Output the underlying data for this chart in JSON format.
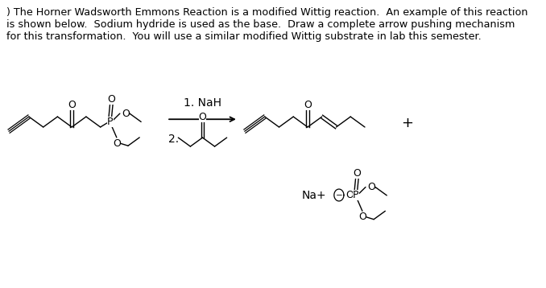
{
  "title_text": ") The Horner Wadsworth Emmons Reaction is a modified Wittig reaction.  An example of this reaction\nis shown below.  Sodium hydride is used as the base.  Draw a complete arrow pushing mechanism\nfor this transformation.  You will use a similar modified Wittig substrate in lab this semester.",
  "step1_label": "1. NaH",
  "step2_label": "2.",
  "na_label": "Na+",
  "plus_label": "+",
  "bg_color": "#ffffff",
  "line_color": "#000000",
  "text_color": "#000000",
  "font_size_body": 9.2,
  "font_size_label": 10,
  "font_size_atom": 9
}
